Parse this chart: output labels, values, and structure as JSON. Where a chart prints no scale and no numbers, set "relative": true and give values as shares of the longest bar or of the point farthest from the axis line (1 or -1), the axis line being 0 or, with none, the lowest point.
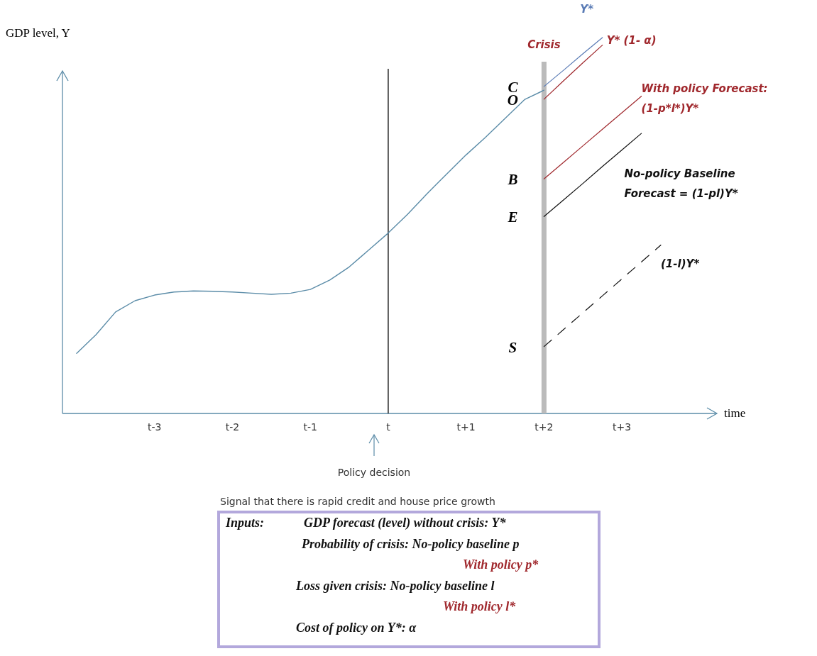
{
  "chart_data": {
    "type": "line",
    "relative": true,
    "ylabel": "GDP level, Y",
    "xlabel": "time",
    "categories": [
      null,
      null,
      null,
      null,
      "t-3",
      null,
      null,
      null,
      "t-2",
      null,
      null,
      null,
      "t-1",
      null,
      null,
      null,
      "t",
      null,
      null,
      null,
      "t+1",
      null,
      null,
      null,
      "t+2",
      null,
      null,
      null,
      "t+3",
      null,
      null
    ],
    "grid": false,
    "legend": false,
    "marker": "none",
    "series": [
      {
        "color": "#5b8ca8",
        "values": [
          0.16,
          0.21,
          0.27,
          0.3,
          0.315,
          0.323,
          0.326,
          0.325,
          0.323,
          0.32,
          0.317,
          0.32,
          0.33,
          0.355,
          0.39,
          0.435,
          0.48,
          0.53,
          0.585,
          0.637,
          0.688,
          0.735,
          0.785,
          0.835,
          0.86,
          null,
          null,
          null,
          null,
          null,
          null
        ]
      },
      {
        "name": "Y*",
        "color": "#5a7bb5",
        "values": [
          null,
          null,
          null,
          null,
          null,
          null,
          null,
          null,
          null,
          null,
          null,
          null,
          null,
          null,
          null,
          null,
          null,
          null,
          null,
          null,
          null,
          null,
          null,
          null,
          0.87,
          0.913,
          0.957,
          1.0,
          null,
          null,
          null
        ]
      },
      {
        "name": "Y* (1- α)",
        "color": "#a0282d",
        "values": [
          null,
          null,
          null,
          null,
          null,
          null,
          null,
          null,
          null,
          null,
          null,
          null,
          null,
          null,
          null,
          null,
          null,
          null,
          null,
          null,
          null,
          null,
          null,
          null,
          0.836,
          0.885,
          0.933,
          0.98,
          null,
          null,
          null
        ]
      },
      {
        "name": "With policy Forecast: (1-p*l*)Y*",
        "color": "#a0282d",
        "values": [
          null,
          null,
          null,
          null,
          null,
          null,
          null,
          null,
          null,
          null,
          null,
          null,
          null,
          null,
          null,
          null,
          null,
          null,
          null,
          null,
          null,
          null,
          null,
          null,
          0.624,
          0.668,
          0.712,
          0.756,
          0.8,
          0.844,
          null
        ]
      },
      {
        "name": "No-policy Baseline Forecast = (1-pl)Y*",
        "color": "#111111",
        "values": [
          null,
          null,
          null,
          null,
          null,
          null,
          null,
          null,
          null,
          null,
          null,
          null,
          null,
          null,
          null,
          null,
          null,
          null,
          null,
          null,
          null,
          null,
          null,
          null,
          0.524,
          0.568,
          0.612,
          0.657,
          0.701,
          0.745,
          null
        ]
      },
      {
        "name": "(1-l)Y*",
        "color": "#111111",
        "line_style": "dashed",
        "values": [
          null,
          null,
          null,
          null,
          null,
          null,
          null,
          null,
          null,
          null,
          null,
          null,
          null,
          null,
          null,
          null,
          null,
          null,
          null,
          null,
          null,
          null,
          null,
          null,
          0.178,
          0.223,
          0.268,
          0.313,
          0.358,
          0.403,
          0.448
        ]
      }
    ],
    "ref_lines": [
      {
        "axis": "x",
        "value": "t",
        "color": "#000000"
      },
      {
        "axis": "x",
        "value": "t+2",
        "label": "Crisis",
        "color": "#bbbbbb"
      }
    ],
    "annotations": [
      {
        "text": "C",
        "x": "t+2",
        "y": 0.87
      },
      {
        "text": "O",
        "x": "t+2",
        "y": 0.836
      },
      {
        "text": "B",
        "x": "t+2",
        "y": 0.624
      },
      {
        "text": "E",
        "x": "t+2",
        "y": 0.524
      },
      {
        "text": "S",
        "x": "t+2",
        "y": 0.178
      },
      "Policy decision",
      "Signal that there is rapid credit and house price growth",
      "Inputs:",
      "GDP forecast (level) without crisis: Y*",
      "Probability of crisis: No-policy baseline p",
      "With policy p*",
      "Loss given crisis: No-policy baseline l",
      "With policy l*",
      "Cost of policy on Y*: α"
    ]
  }
}
